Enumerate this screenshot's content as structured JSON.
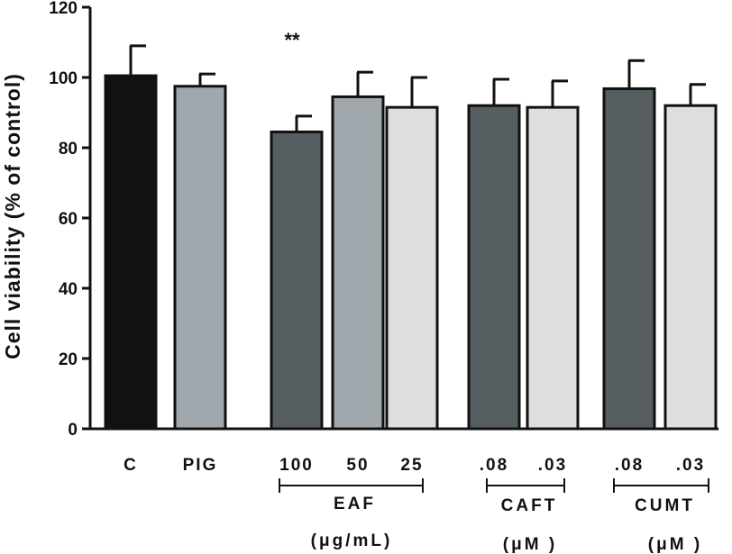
{
  "chart_data": {
    "type": "bar",
    "ylabel": "Cell viability (% of control)",
    "xlabel": "",
    "ylim": [
      0,
      120
    ],
    "yticks": [
      0,
      20,
      40,
      60,
      80,
      100,
      120
    ],
    "grid": false,
    "legend": "none",
    "categories": [
      "C",
      "PIG",
      "100",
      "50",
      "25",
      ".08",
      ".03",
      ".08",
      ".03"
    ],
    "values": [
      100.5,
      97.5,
      84.5,
      94.5,
      91.5,
      92,
      91.5,
      96.8,
      92
    ],
    "errors": [
      8.5,
      3.5,
      4.5,
      7,
      8.5,
      7.5,
      7.5,
      8,
      6
    ],
    "colors": [
      "#111111",
      "#a1a8ad",
      "#555d60",
      "#a1a8ad",
      "#dcdedf",
      "#555d60",
      "#dcdedf",
      "#555d60",
      "#dcdedf"
    ],
    "groups": [
      {
        "label": "EAF",
        "unit": "(μg/mL)",
        "from": 2,
        "to": 4
      },
      {
        "label": "CAFT",
        "unit": "(μM )",
        "from": 5,
        "to": 6
      },
      {
        "label": "CUMT",
        "unit": "(μM )",
        "from": 7,
        "to": 8
      }
    ],
    "annotations": [
      {
        "text": "**",
        "category_index": 2
      }
    ]
  }
}
